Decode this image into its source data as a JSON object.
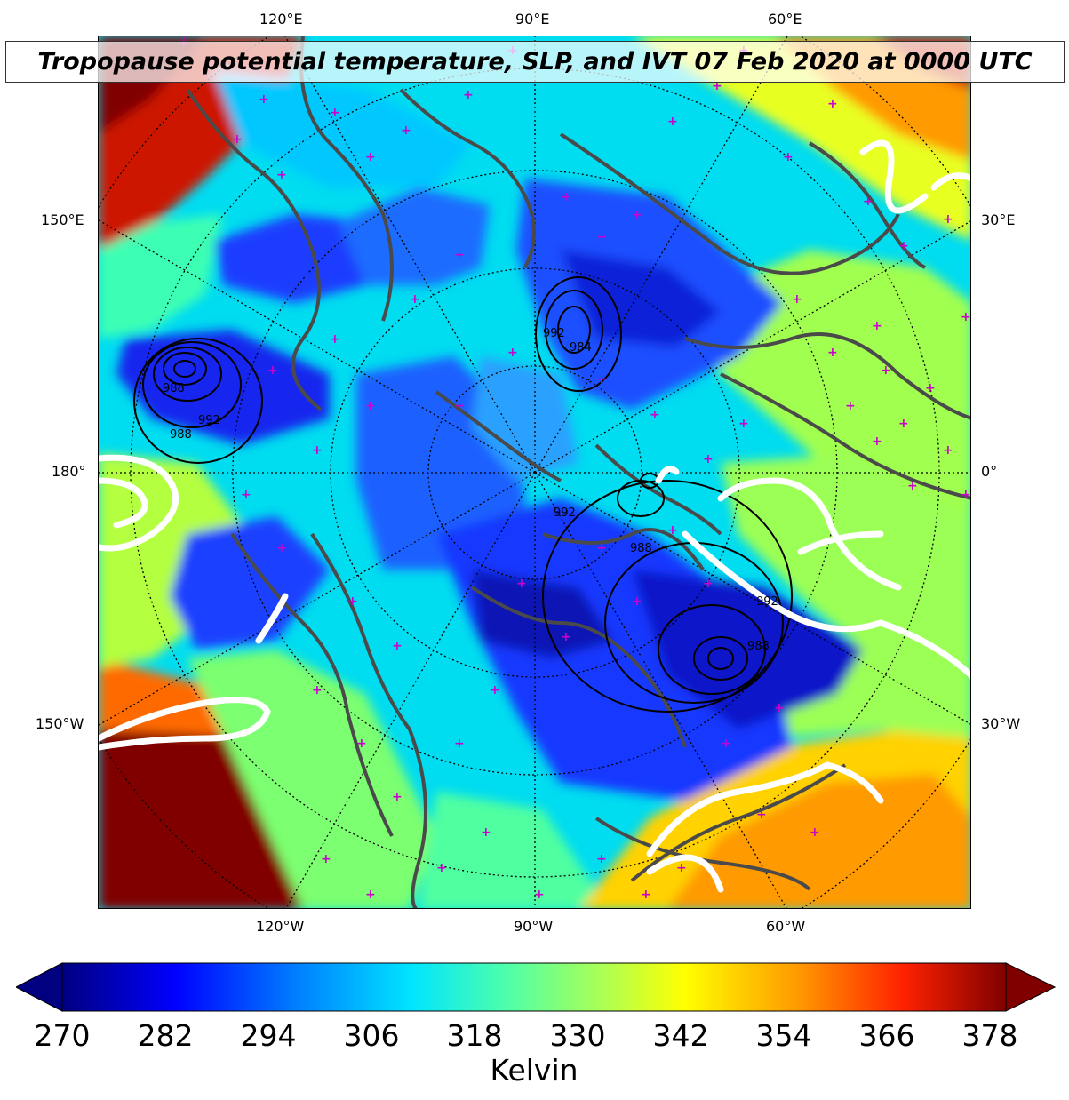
{
  "title": "Tropopause potential temperature, SLP, and IVT 07 Feb 2020 at 0000 UTC",
  "top_lon_labels": [
    "120°E",
    "90°E",
    "60°E"
  ],
  "bottom_lon_labels": [
    "120°W",
    "90°W",
    "60°W"
  ],
  "left_labels": [
    "150°E",
    "180°",
    "150°W"
  ],
  "right_labels": [
    "30°E",
    "0°",
    "30°W"
  ],
  "slp_contour_labels": [
    "988",
    "992",
    "988",
    "992",
    "984",
    "992",
    "988",
    "992",
    "988"
  ],
  "colorbar": {
    "unit": "Kelvin",
    "min": 270,
    "max": 378,
    "ticks": [
      "270",
      "282",
      "294",
      "306",
      "318",
      "330",
      "342",
      "354",
      "366",
      "378"
    ],
    "extend": "both",
    "colormap": "jet",
    "stops": [
      "#000080",
      "#0000ff",
      "#0080ff",
      "#00e5ff",
      "#4dffaa",
      "#b3ff4d",
      "#ffff00",
      "#ff9900",
      "#ff2200",
      "#800000"
    ]
  },
  "colors": {
    "coastline": "#4a4a4a",
    "ivt_contour": "#ffffff",
    "slp_contour": "#000000",
    "marker": "#cc00cc"
  }
}
